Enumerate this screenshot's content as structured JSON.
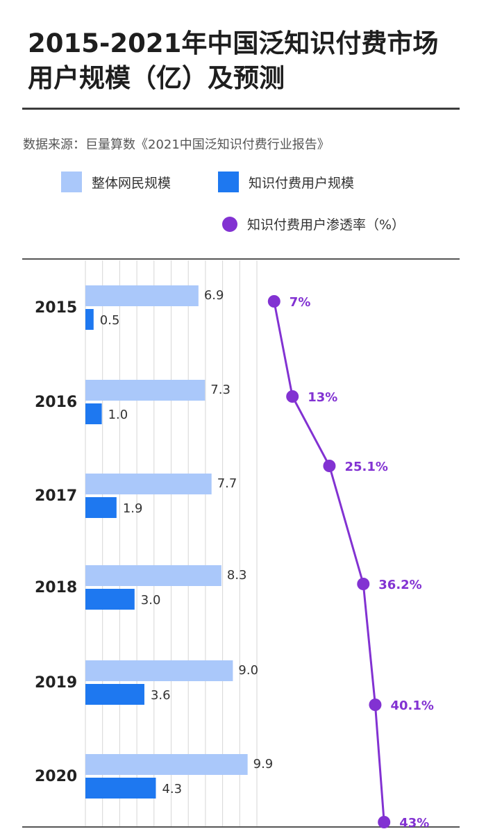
{
  "title_line1": "2015-2021年中国泛知识付费市场",
  "title_line2": "用户规模（亿）及预测",
  "source": "数据来源：巨量算数《2021中国泛知识付费行业报告》",
  "colors": {
    "total": "#aac8fa",
    "paid": "#1e78f0",
    "rate": "#8232d2",
    "grid": "#d6d6d6"
  },
  "legend": {
    "total": "整体网民规模",
    "paid": "知识付费用户规模",
    "rate": "知识付费用户渗透率（%）"
  },
  "chart_data": {
    "type": "bar",
    "orientation": "horizontal",
    "categories": [
      "2015",
      "2016",
      "2017",
      "2018",
      "2019",
      "2020"
    ],
    "series": [
      {
        "name": "整体网民规模",
        "values": [
          6.9,
          7.3,
          7.7,
          8.3,
          9.0,
          9.9
        ],
        "labels": [
          "6.9",
          "7.3",
          "7.7",
          "8.3",
          "9.0",
          "9.9"
        ]
      },
      {
        "name": "知识付费用户规模",
        "values": [
          0.5,
          1.0,
          1.9,
          3.0,
          3.6,
          4.3
        ],
        "labels": [
          "0.5",
          "1.0",
          "1.9",
          "3.0",
          "3.6",
          "4.3"
        ]
      },
      {
        "name": "知识付费用户渗透率（%）",
        "type": "line",
        "values": [
          7,
          13,
          25.1,
          36.2,
          40.1,
          43
        ],
        "labels": [
          "7%",
          "13%",
          "25.1%",
          "36.2%",
          "40.1%",
          "43%"
        ]
      }
    ],
    "grid": true
  }
}
